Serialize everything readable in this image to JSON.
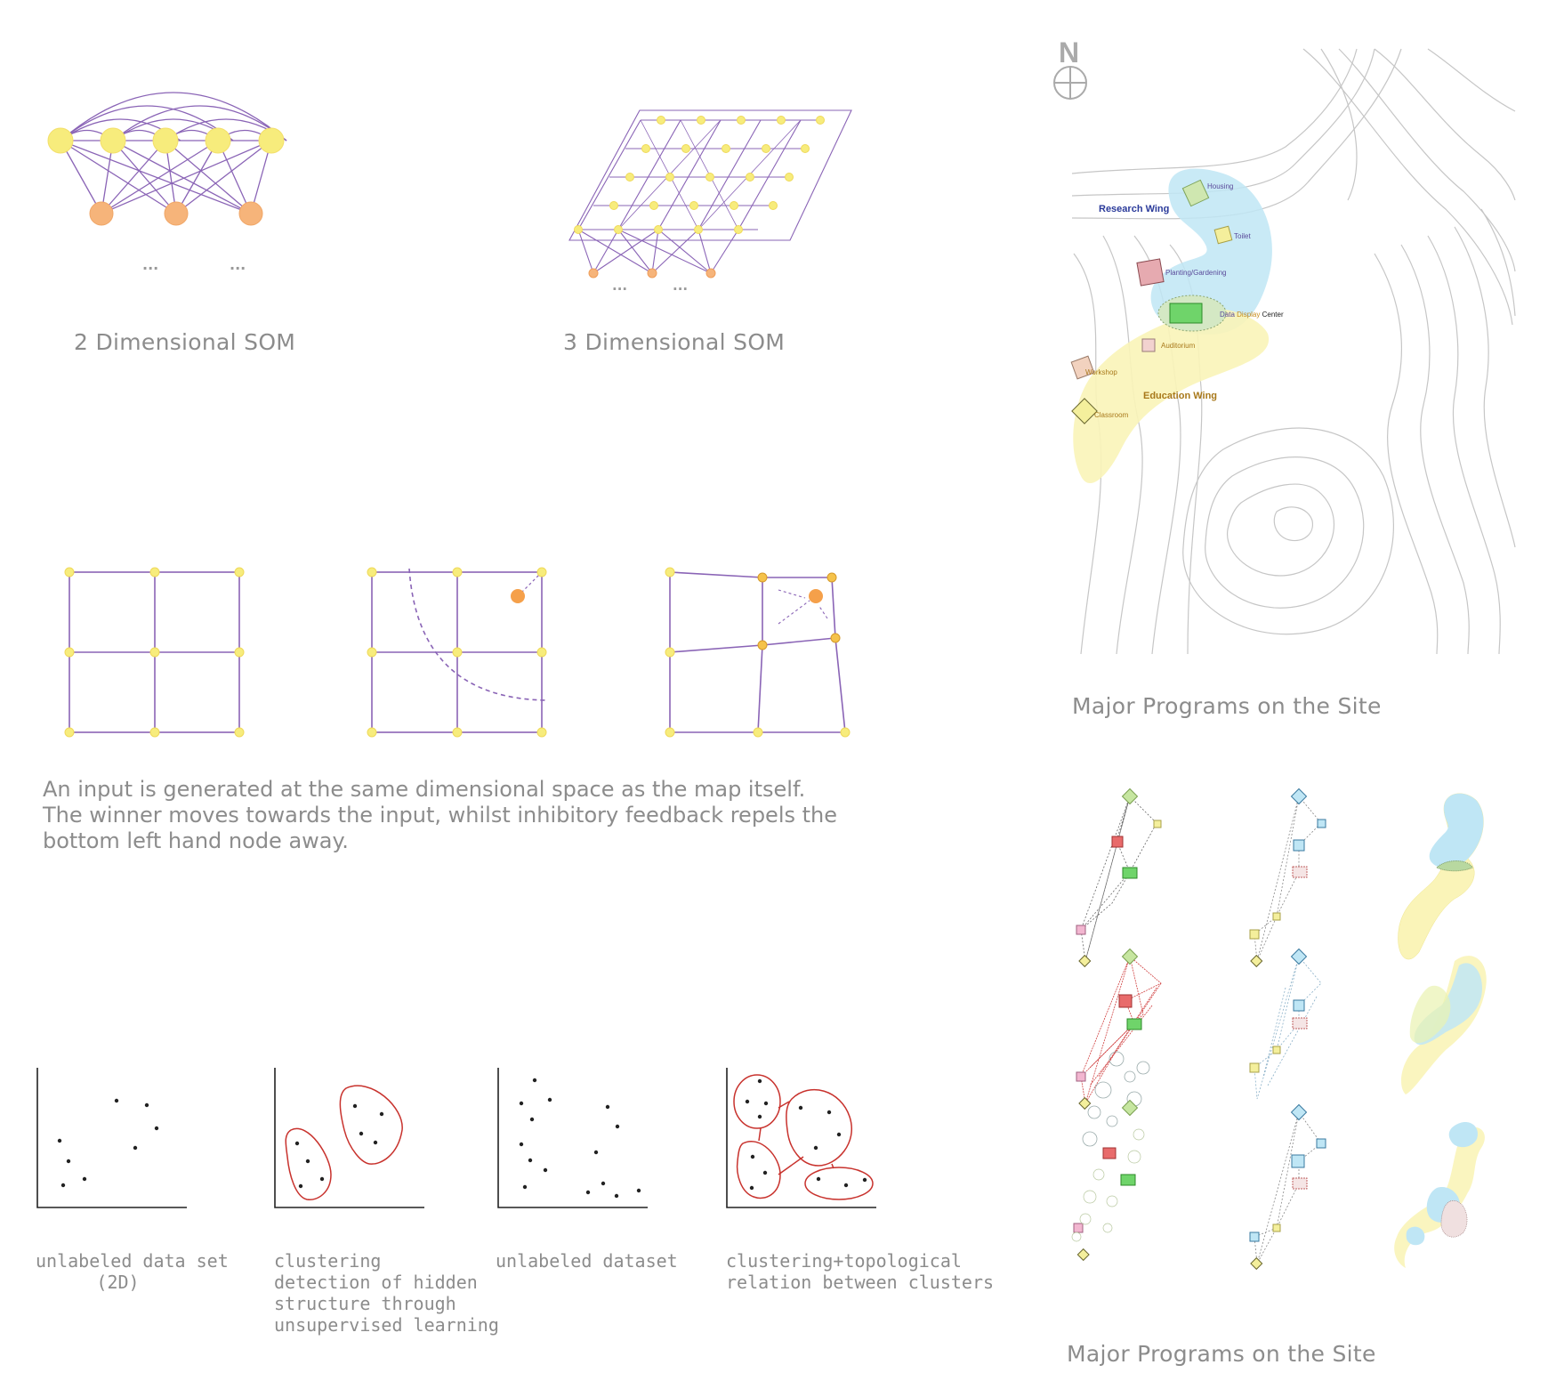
{
  "som": {
    "caption_2d": "2 Dimensional SOM",
    "caption_3d": "3 Dimensional SOM",
    "ellipsis": "..."
  },
  "update_text": {
    "lines": [
      "An input is generated at the same dimensional space as the map itself.",
      "The winner moves towards the input, whilst inhibitory feedback repels the",
      "bottom left hand node away."
    ]
  },
  "clustering": {
    "captions": [
      [
        "unlabeled data set",
        "(2D)"
      ],
      [
        "clustering",
        "detection of hidden",
        "structure through",
        "unsupervised learning"
      ],
      [
        "unlabeled dataset"
      ],
      [
        "clustering+topological",
        "relation between clusters"
      ]
    ]
  },
  "site_map": {
    "north": "N",
    "research_wing": "Research Wing",
    "education_wing": "Education Wing",
    "programs": {
      "housing": "Housing",
      "toilet": "Toilet",
      "planting": "Planting/Gardening",
      "data_display_1": "Data",
      "data_display_2": "Display",
      "data_display_3": "Center",
      "auditorium": "Auditorium",
      "workshop": "Workshop",
      "classroom": "Classroom"
    },
    "caption": "Major Programs on the Site"
  },
  "variants": {
    "caption": "Major Programs on the Site"
  },
  "colors": {
    "node_yellow": "#f7ec7c",
    "node_orange": "#f6b47a",
    "edge_purple": "#8a64b6",
    "cluster_red": "#c8322d",
    "research_blue": "#bfe6f5",
    "education_yellow": "#faf4b8"
  }
}
